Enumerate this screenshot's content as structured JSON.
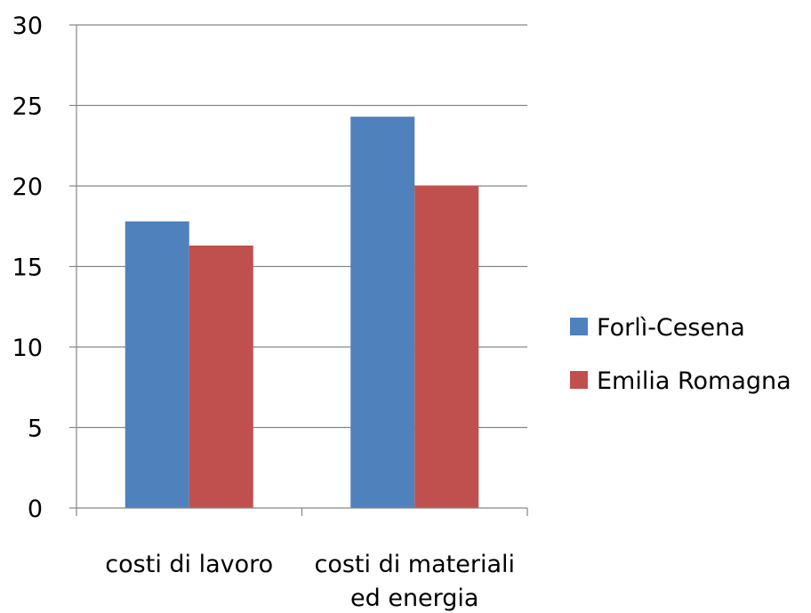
{
  "chart_data": {
    "type": "bar",
    "title": "",
    "xlabel": "",
    "ylabel": "",
    "categories": [
      [
        "costi di lavoro"
      ],
      [
        "costi di materiali",
        "ed energia"
      ]
    ],
    "series": [
      {
        "name": "Forlì-Cesena",
        "color": "#4f81bd",
        "values": [
          17.8,
          24.3
        ]
      },
      {
        "name": "Emilia Romagna",
        "color": "#c0504d",
        "values": [
          16.3,
          20.0
        ]
      }
    ],
    "ylim": [
      0,
      30
    ],
    "yticks": [
      0,
      5,
      10,
      15,
      20,
      25,
      30
    ],
    "grid": true,
    "legend_position": "right"
  }
}
